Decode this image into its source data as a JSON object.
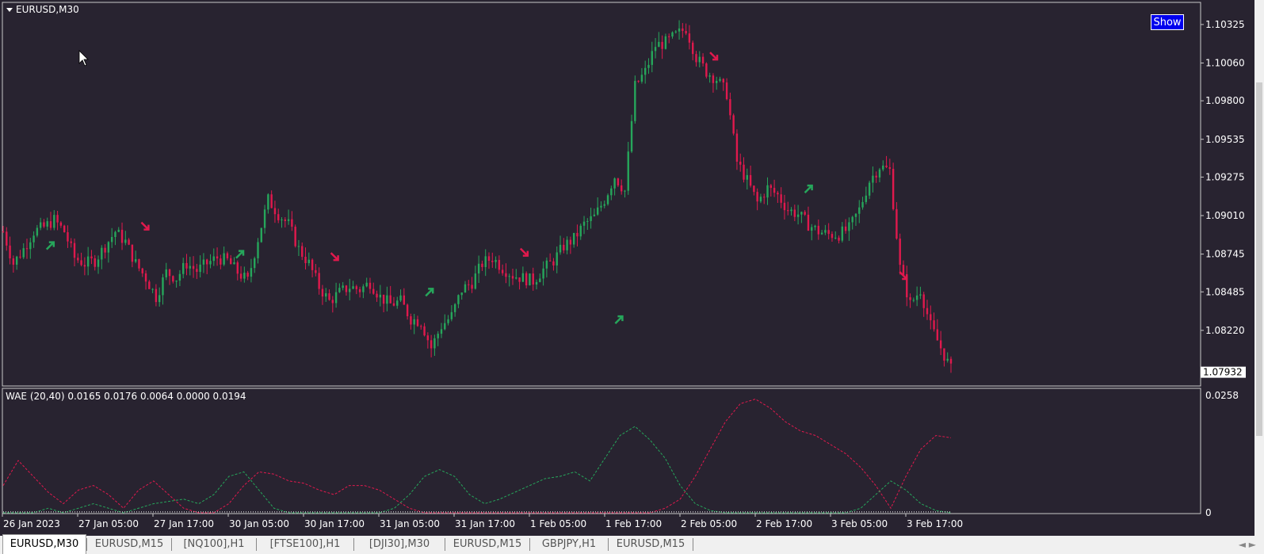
{
  "window": {
    "symbol_title": "EURUSD,M30"
  },
  "toolbar": {
    "show_label": "Show"
  },
  "chart_data": [
    {
      "type": "candlestick",
      "title": "EURUSD,M30",
      "price_axis_ticks": [
        "1.10325",
        "1.10060",
        "1.09800",
        "1.09535",
        "1.09275",
        "1.09010",
        "1.08745",
        "1.08485",
        "1.08220"
      ],
      "price_axis_range": [
        1.0793,
        1.1045
      ],
      "current_price": "1.07932",
      "background": "#282330",
      "bull_color": "#26a65b",
      "bear_color": "#e0194d",
      "close_series": [
        1.089,
        1.0868,
        1.0878,
        1.089,
        1.0893,
        1.0898,
        1.089,
        1.0872,
        1.0868,
        1.087,
        1.088,
        1.089,
        1.0883,
        1.0868,
        1.0858,
        1.0845,
        1.0862,
        1.0858,
        1.0868,
        1.0863,
        1.0868,
        1.0872,
        1.087,
        1.0862,
        1.0856,
        1.0885,
        1.0912,
        1.0902,
        1.0895,
        1.0878,
        1.0868,
        1.0852,
        1.0842,
        1.0848,
        1.0852,
        1.085,
        1.0855,
        1.0845,
        1.084,
        1.0842,
        1.083,
        1.0828,
        1.081,
        1.0825,
        1.0832,
        1.085,
        1.0855,
        1.0868,
        1.0872,
        1.0865,
        1.086,
        1.0858,
        1.0856,
        1.0864,
        1.087,
        1.088,
        1.0885,
        1.0895,
        1.09,
        1.0912,
        1.0928,
        1.0918,
        1.099,
        1.1,
        1.1018,
        1.102,
        1.1025,
        1.103,
        1.101,
        1.1,
        1.0995,
        1.0985,
        1.0938,
        1.0925,
        1.091,
        1.092,
        1.0915,
        1.0905,
        1.0902,
        1.0895,
        1.089,
        1.0888,
        1.0888,
        1.0892,
        1.0905,
        1.0925,
        1.0935,
        1.0932,
        1.0865,
        1.084,
        1.085,
        1.0825,
        1.081,
        1.0795
      ],
      "signal_arrows": [
        {
          "dir": "up",
          "price": 1.0881
        },
        {
          "dir": "down",
          "price": 1.0893
        },
        {
          "dir": "up",
          "price": 1.0875
        },
        {
          "dir": "down",
          "price": 1.0872
        },
        {
          "dir": "up",
          "price": 1.0849
        },
        {
          "dir": "down",
          "price": 1.0875
        },
        {
          "dir": "up",
          "price": 1.083
        },
        {
          "dir": "down",
          "price": 1.101
        },
        {
          "dir": "up",
          "price": 1.092
        },
        {
          "dir": "down",
          "price": 1.0859
        }
      ],
      "time_axis_labels": [
        "26 Jan 2023",
        "27 Jan 05:00",
        "27 Jan 17:00",
        "30 Jan 05:00",
        "30 Jan 17:00",
        "31 Jan 05:00",
        "31 Jan 17:00",
        "1 Feb 05:00",
        "1 Feb 17:00",
        "2 Feb 05:00",
        "2 Feb 17:00",
        "3 Feb 05:00",
        "3 Feb 17:00"
      ]
    },
    {
      "type": "line",
      "title": "WAE (20,40) 0.0165 0.0176 0.0064 0.0000 0.0194",
      "value_axis_ticks": [
        "0.0258",
        "0"
      ],
      "ylim": [
        0,
        0.0258
      ],
      "series": [
        {
          "color": "#e0194d",
          "style": "dashed",
          "values": [
            0.006,
            0.0115,
            0.008,
            0.0045,
            0.002,
            0.005,
            0.006,
            0.004,
            0.001,
            0.005,
            0.007,
            0.004,
            0.001,
            0.0,
            0.0,
            0.002,
            0.006,
            0.009,
            0.0085,
            0.007,
            0.0065,
            0.005,
            0.004,
            0.006,
            0.006,
            0.005,
            0.003,
            0.001,
            0.0,
            0.0,
            0.0,
            0.0,
            0.0,
            0.0,
            0.0,
            0.0,
            0.0,
            0.0,
            0.0,
            0.0,
            0.0,
            0.0,
            0.0,
            0.0,
            0.001,
            0.003,
            0.008,
            0.014,
            0.02,
            0.024,
            0.025,
            0.023,
            0.02,
            0.018,
            0.017,
            0.015,
            0.013,
            0.01,
            0.006,
            0.001,
            0.008,
            0.014,
            0.017,
            0.0165
          ]
        },
        {
          "color": "#26a65b",
          "style": "dashed",
          "values": [
            0.0,
            0.0,
            0.0,
            0.001,
            0.0,
            0.001,
            0.002,
            0.001,
            0.0,
            0.001,
            0.002,
            0.0025,
            0.003,
            0.002,
            0.004,
            0.008,
            0.009,
            0.005,
            0.001,
            0.0,
            0.0,
            0.0,
            0.0,
            0.0,
            0.0,
            0.0,
            0.001,
            0.004,
            0.008,
            0.0095,
            0.008,
            0.004,
            0.002,
            0.003,
            0.0045,
            0.006,
            0.0075,
            0.008,
            0.009,
            0.007,
            0.012,
            0.017,
            0.019,
            0.016,
            0.012,
            0.006,
            0.002,
            0.0005,
            0.0,
            0.0,
            0.0,
            0.0,
            0.0,
            0.0,
            0.0,
            0.0,
            0.0,
            0.001,
            0.004,
            0.007,
            0.005,
            0.002,
            0.0005,
            0.0
          ]
        },
        {
          "color": "#ffffff",
          "style": "dotted",
          "values": [
            0.0002,
            0.0002,
            0.0002,
            0.0002,
            0.0002,
            0.0002,
            0.0002,
            0.0002,
            0.0002,
            0.0002,
            0.0002,
            0.0002,
            0.0002,
            0.0002,
            0.0002,
            0.0002,
            0.0002,
            0.0002,
            0.0002,
            0.0002,
            0.0002,
            0.0002,
            0.0002,
            0.0002,
            0.0002,
            0.0002,
            0.0002,
            0.0002,
            0.0002,
            0.0002,
            0.0002,
            0.0002,
            0.0002,
            0.0002,
            0.0002,
            0.0002,
            0.0002,
            0.0002,
            0.0002,
            0.0002,
            0.0002,
            0.0002,
            0.0002,
            0.0002,
            0.0002,
            0.0002,
            0.0002,
            0.0002,
            0.0002,
            0.0002,
            0.0002,
            0.0002,
            0.0002,
            0.0002,
            0.0002,
            0.0002,
            0.0002,
            0.0002,
            0.0002,
            0.0002,
            0.0002,
            0.0002,
            0.0002,
            0.0002
          ]
        }
      ]
    }
  ],
  "tabs": [
    {
      "label": "EURUSD,M30",
      "active": true
    },
    {
      "label": "EURUSD,M15"
    },
    {
      "label": "[NQ100],H1"
    },
    {
      "label": "[FTSE100],H1"
    },
    {
      "label": "[DJI30],M30"
    },
    {
      "label": "EURUSD,M15"
    },
    {
      "label": "GBPJPY,H1"
    },
    {
      "label": "EURUSD,M15"
    }
  ],
  "nav_arrows": "◄ ►"
}
